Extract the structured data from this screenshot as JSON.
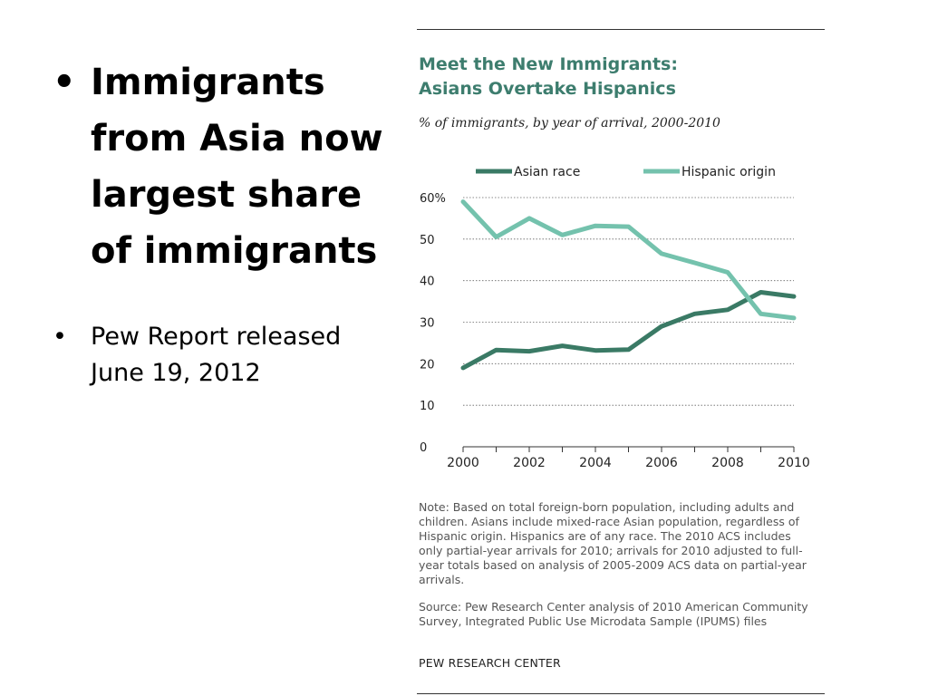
{
  "slide": {
    "bullets": [
      "Immigrants from Asia now largest share of immigrants",
      "Pew Report released June 19, 2012"
    ],
    "bullet_symbol": "•"
  },
  "figure": {
    "title_line1": "Meet the New Immigrants:",
    "title_line2": "Asians Overtake Hispanics",
    "subtitle": "% of immigrants, by year of arrival, 2000-2010",
    "note": "Note: Based on total foreign-born population, including adults and children. Asians include mixed-race Asian population, regardless of Hispanic origin. Hispanics are of any race. The 2010 ACS includes only partial-year arrivals for 2010; arrivals for 2010 adjusted to full-year totals based on analysis of 2005-2009 ACS data on partial-year arrivals.",
    "source": "Source: Pew Research Center analysis of 2010 American Community Survey, Integrated Public Use Microdata Sample (IPUMS) files",
    "credit": "PEW RESEARCH CENTER"
  },
  "chart_data": {
    "type": "line",
    "title": "Meet the New Immigrants: Asians Overtake Hispanics",
    "subtitle": "% of immigrants, by year of arrival, 2000-2010",
    "x": [
      2000,
      2001,
      2002,
      2003,
      2004,
      2005,
      2006,
      2007,
      2008,
      2009,
      2010
    ],
    "x_tick_labels": [
      "2000",
      "2002",
      "2004",
      "2006",
      "2008",
      "2010"
    ],
    "y_tick_labels": [
      "0",
      "10",
      "20",
      "30",
      "40",
      "50",
      "60%"
    ],
    "ylim": [
      0,
      60
    ],
    "grid": true,
    "grid_style": "dotted horizontal",
    "legend_position": "top",
    "series": [
      {
        "name": "Asian race",
        "color": "#3a7a65",
        "values": [
          19,
          23.3,
          23,
          24.3,
          23.2,
          23.4,
          29,
          32,
          33,
          37.2,
          36.2
        ]
      },
      {
        "name": "Hispanic origin",
        "color": "#74c2ad",
        "values": [
          59,
          50.5,
          55,
          51,
          53.2,
          53,
          46.5,
          44.3,
          42,
          32,
          31
        ]
      }
    ]
  }
}
